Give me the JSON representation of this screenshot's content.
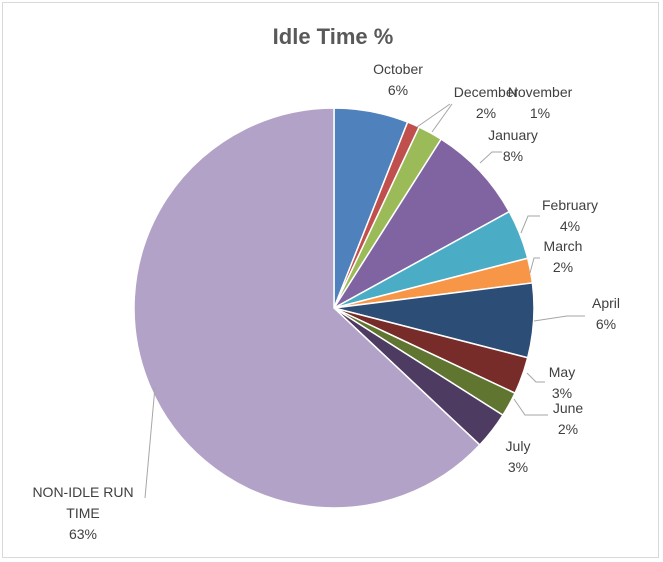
{
  "chart_data": {
    "type": "pie",
    "title": "Idle Time %",
    "slices": [
      {
        "name": "October",
        "value": 6,
        "label": "6%",
        "color": "#4F81BD"
      },
      {
        "name": "November",
        "value": 1,
        "label": "1%",
        "color": "#C0504D"
      },
      {
        "name": "December",
        "value": 2,
        "label": "2%",
        "color": "#9BBB59"
      },
      {
        "name": "January",
        "value": 8,
        "label": "8%",
        "color": "#8064A2"
      },
      {
        "name": "February",
        "value": 4,
        "label": "4%",
        "color": "#4BACC6"
      },
      {
        "name": "March",
        "value": 2,
        "label": "2%",
        "color": "#F79646"
      },
      {
        "name": "April",
        "value": 6,
        "label": "6%",
        "color": "#2C4D75"
      },
      {
        "name": "May",
        "value": 3,
        "label": "3%",
        "color": "#772C2A"
      },
      {
        "name": "June",
        "value": 2,
        "label": "2%",
        "color": "#5F7530"
      },
      {
        "name": "July",
        "value": 3,
        "label": "3%",
        "color": "#4D3B62"
      },
      {
        "name": "NON-IDLE RUN TIME",
        "value": 63,
        "label": "63%",
        "color": "#B3A2C7"
      }
    ],
    "legend": "none",
    "data_labels": "outside with leader lines"
  }
}
